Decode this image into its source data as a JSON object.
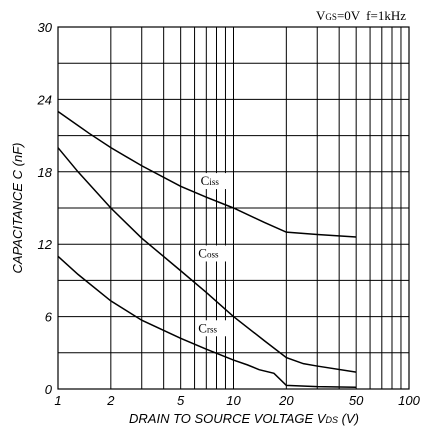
{
  "chart_data": {
    "type": "line",
    "conditions": {
      "vgs_prefix": "V",
      "vgs_sub": "GS",
      "vgs_rest": "=0V",
      "freq": "f=1kHz"
    },
    "xlabel": {
      "main": "DRAIN TO SOURCE VOLTAGE  V",
      "sub": "DS",
      "unit": " (V)"
    },
    "ylabel": "CAPACITANCE  C (nF)",
    "x_scale": "log",
    "xlim": [
      1,
      100
    ],
    "ylim": [
      0,
      30
    ],
    "x_ticks": [
      {
        "value": 1,
        "label": "1"
      },
      {
        "value": 2,
        "label": "2"
      },
      {
        "value": 5,
        "label": "5"
      },
      {
        "value": 10,
        "label": "10"
      },
      {
        "value": 20,
        "label": "20"
      },
      {
        "value": 50,
        "label": "50"
      },
      {
        "value": 100,
        "label": "100"
      }
    ],
    "y_ticks": [
      0,
      6,
      12,
      18,
      24,
      30
    ],
    "grid": true,
    "series": [
      {
        "name": "Ciss",
        "label_main": "C",
        "label_sub": "iss",
        "x": [
          1,
          1.5,
          2,
          3,
          5,
          7,
          10,
          15,
          20,
          30,
          50
        ],
        "y": [
          23.0,
          21.2,
          20.0,
          18.5,
          16.8,
          15.9,
          15.0,
          13.8,
          13.0,
          12.8,
          12.6
        ]
      },
      {
        "name": "Coss",
        "label_main": "C",
        "label_sub": "oss",
        "x": [
          1,
          1.3,
          2,
          3,
          5,
          7,
          10,
          15,
          20,
          25,
          30,
          50
        ],
        "y": [
          20.0,
          18.0,
          15.0,
          12.5,
          9.8,
          8.0,
          6.0,
          4.0,
          2.6,
          2.1,
          1.9,
          1.4
        ]
      },
      {
        "name": "Crss",
        "label_main": "C",
        "label_sub": "rss",
        "x": [
          1,
          1.3,
          2,
          3,
          5,
          7,
          10,
          12,
          14,
          17,
          20,
          30,
          50
        ],
        "y": [
          11.0,
          9.5,
          7.3,
          5.7,
          4.2,
          3.3,
          2.4,
          2.0,
          1.6,
          1.3,
          0.3,
          0.2,
          0.15
        ]
      }
    ],
    "annotations": [
      {
        "series": "Ciss",
        "x": 6.5,
        "y": 16.9
      },
      {
        "series": "Coss",
        "x": 6.3,
        "y": 10.9
      },
      {
        "series": "Crss",
        "x": 6.3,
        "y": 4.7
      }
    ]
  }
}
